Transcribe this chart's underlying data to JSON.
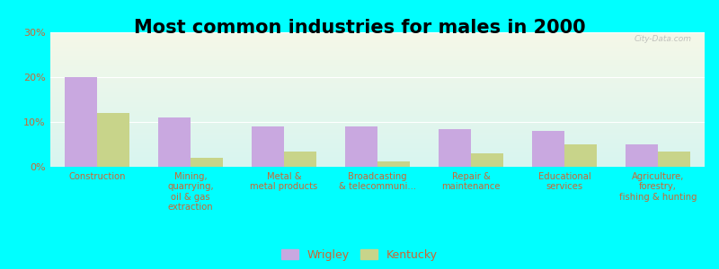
{
  "title": "Most common industries for males in 2000",
  "categories": [
    "Construction",
    "Mining,\nquarrying,\noil & gas\nextraction",
    "Metal &\nmetal products",
    "Broadcasting\n& telecommuni...",
    "Repair &\nmaintenance",
    "Educational\nservices",
    "Agriculture,\nforestry,\nfishing & hunting"
  ],
  "wrigley": [
    20,
    11,
    9,
    9,
    8.5,
    8,
    5
  ],
  "kentucky": [
    12,
    2,
    3.5,
    1.2,
    3,
    5,
    3.5
  ],
  "wrigley_color": "#c9a8e0",
  "kentucky_color": "#c8d48a",
  "bg_color_top": "#f5f8e8",
  "bg_color_bottom": "#d8f5f0",
  "outer_bg": "#00ffff",
  "ylim": [
    0,
    30
  ],
  "yticks": [
    0,
    10,
    20,
    30
  ],
  "ytick_labels": [
    "0%",
    "10%",
    "20%",
    "30%"
  ],
  "legend_wrigley": "Wrigley",
  "legend_kentucky": "Kentucky",
  "title_fontsize": 15,
  "bar_width": 0.35,
  "label_color": "#cc6633"
}
